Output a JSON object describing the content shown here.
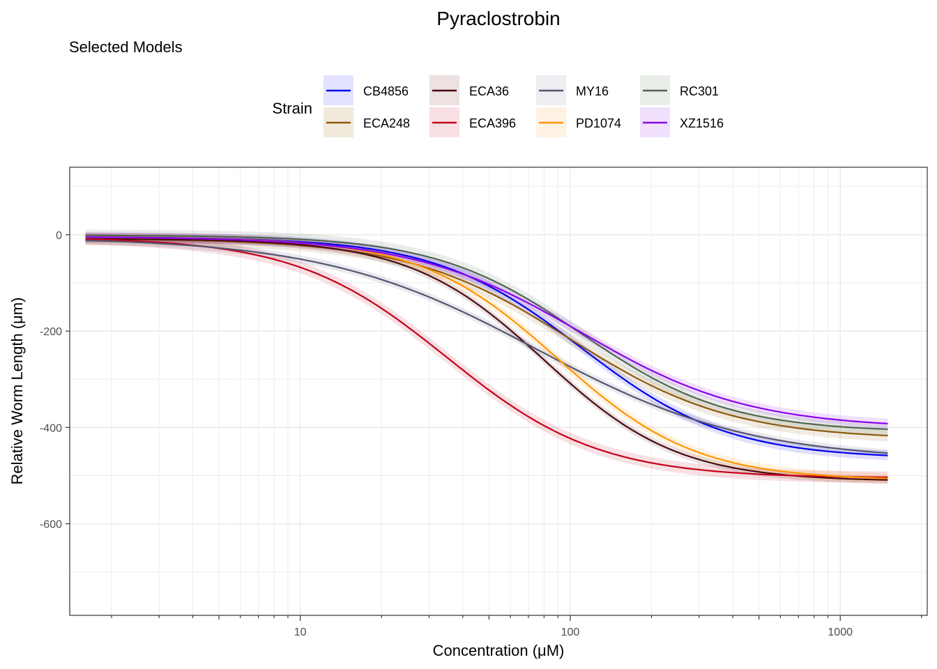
{
  "chart_data": {
    "type": "line",
    "title": "Pyraclostrobin",
    "subtitle": "Selected Models",
    "xlabel": "Concentration (μM)",
    "ylabel": "Relative Worm Length (μm)",
    "x_scale": "log10",
    "xlim": [
      1.4,
      2100
    ],
    "ylim": [
      -790,
      140
    ],
    "x_ticks": [
      10,
      100,
      1000
    ],
    "x_tick_labels": [
      "10",
      "100",
      "1000"
    ],
    "y_ticks": [
      0,
      -200,
      -400,
      -600
    ],
    "y_tick_labels": [
      "0",
      "-200",
      "-400",
      "-600"
    ],
    "grid": true,
    "legend": {
      "title": "Strain",
      "position": "top"
    },
    "x_range": [
      1.6,
      1500
    ],
    "series": [
      {
        "name": "CB4856",
        "color": "#0000ee",
        "fill": "#e3e3ff",
        "top": -5,
        "bottom": -465,
        "ec50": 110,
        "hill": 1.6,
        "ribbon": 10
      },
      {
        "name": "ECA248",
        "color": "#8c5a0c",
        "fill": "#f1eadd",
        "top": -8,
        "bottom": -425,
        "ec50": 100,
        "hill": 1.45,
        "ribbon": 12
      },
      {
        "name": "ECA36",
        "color": "#4a0a0f",
        "fill": "#ede1e2",
        "top": -8,
        "bottom": -512,
        "ec50": 80,
        "hill": 1.75,
        "ribbon": 8
      },
      {
        "name": "ECA396",
        "color": "#c4001a",
        "fill": "#f8e0e5",
        "top": -5,
        "bottom": -505,
        "ec50": 35,
        "hill": 1.55,
        "ribbon": 12
      },
      {
        "name": "MY16",
        "color": "#555570",
        "fill": "#eeeef2",
        "top": -5,
        "bottom": -470,
        "ec50": 75,
        "hill": 1.1,
        "ribbon": 8
      },
      {
        "name": "PD1074",
        "color": "#ff9500",
        "fill": "#fff2e3",
        "top": -5,
        "bottom": -510,
        "ec50": 90,
        "hill": 1.7,
        "ribbon": 10
      },
      {
        "name": "RC301",
        "color": "#4f6650",
        "fill": "#e9eee9",
        "top": -1,
        "bottom": -410,
        "ec50": 110,
        "hill": 1.6,
        "ribbon": 12
      },
      {
        "name": "XZ1516",
        "color": "#8b00ee",
        "fill": "#f0e0fd",
        "top": -4,
        "bottom": -402,
        "ec50": 110,
        "hill": 1.4,
        "ribbon": 10
      }
    ]
  }
}
